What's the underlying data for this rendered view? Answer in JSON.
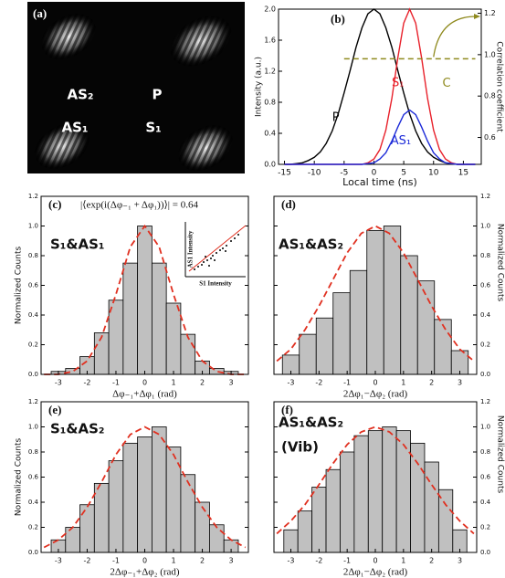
{
  "chart_data": [
    {
      "type": "image",
      "panel_label": "(a)",
      "labels": [
        "AS₂",
        "P",
        "AS₁",
        "S₁"
      ]
    },
    {
      "type": "line",
      "panel_label": "(b)",
      "xlabel": "Local time (ns)",
      "ylabel": "Intensity (a.u.)",
      "y2label": "Correlation coefficient",
      "x": [
        -15,
        -14,
        -13,
        -12,
        -11,
        -10,
        -9,
        -8,
        -7,
        -6,
        -5,
        -4,
        -3,
        -2,
        -1,
        0,
        1,
        2,
        3,
        4,
        5,
        6,
        7,
        8,
        9,
        10,
        11,
        12,
        13,
        14,
        15,
        16,
        17
      ],
      "series": [
        {
          "name": "P",
          "color": "#000000",
          "values": [
            0.0,
            0.0,
            0.01,
            0.02,
            0.05,
            0.09,
            0.16,
            0.27,
            0.43,
            0.65,
            0.92,
            1.21,
            1.51,
            1.76,
            1.94,
            2.0,
            1.94,
            1.76,
            1.51,
            1.21,
            0.92,
            0.65,
            0.43,
            0.27,
            0.16,
            0.09,
            0.05,
            0.02,
            0.01,
            0.0,
            0.0,
            0.0,
            0.0
          ]
        },
        {
          "name": "S₁",
          "color": "#e8202a",
          "values": [
            0,
            0,
            0,
            0,
            0,
            0,
            0,
            0,
            0,
            0,
            0,
            0,
            0,
            0,
            0.02,
            0.07,
            0.19,
            0.44,
            0.85,
            1.37,
            1.82,
            2.0,
            1.82,
            1.37,
            0.85,
            0.44,
            0.19,
            0.07,
            0.02,
            0,
            0,
            0,
            0
          ]
        },
        {
          "name": "AS₁",
          "color": "#1c2ad8",
          "values": [
            0,
            0,
            0,
            0,
            0,
            0,
            0,
            0,
            0,
            0,
            0,
            0,
            0,
            0,
            0.01,
            0.02,
            0.07,
            0.15,
            0.3,
            0.48,
            0.64,
            0.7,
            0.64,
            0.48,
            0.3,
            0.15,
            0.07,
            0.02,
            0.01,
            0,
            0,
            0,
            0
          ]
        },
        {
          "name": "C",
          "color": "#8f8a1e",
          "axis": "y2",
          "line_style": "dashed",
          "values": [
            null,
            null,
            null,
            null,
            null,
            null,
            null,
            null,
            null,
            null,
            0.98,
            0.98,
            0.98,
            0.98,
            0.98,
            0.98,
            0.98,
            0.98,
            0.98,
            0.98,
            0.98,
            0.98,
            0.98,
            0.98,
            0.98,
            0.98,
            0.98,
            0.98,
            0.98,
            0.98,
            0.98,
            0.98,
            0.98
          ]
        }
      ],
      "xlim": [
        -16,
        18
      ],
      "xticks": [
        -15,
        -10,
        -5,
        0,
        5,
        10,
        15
      ],
      "ylim": [
        0,
        2
      ],
      "yticks": [
        {
          "value": 0,
          "label": "0.0"
        },
        0.4,
        0.8,
        1.2,
        1.6,
        {
          "value": 2,
          "label": "2.0"
        }
      ],
      "y2lim": [
        0.47,
        1.22
      ],
      "y2ticks": [
        0.6,
        0.8,
        {
          "value": 1,
          "label": "1.0"
        },
        1.2
      ]
    },
    {
      "type": "histogram",
      "panel_label": "(c)",
      "annotation": [
        "S₁&AS₁"
      ],
      "formula": "|⟨exp(i(Δφ₋₁ + Δφ₁))⟩| = 0.64",
      "inset": {
        "xlabel": "S1 Intensity",
        "ylabel": "AS1 Intensity"
      },
      "xlabel": "Δφ₋₁+Δφ₁ (rad)",
      "ylabel": "Normalized Counts",
      "color": "#c0c0c0",
      "bins": [
        -3.25,
        -2.75,
        -2.25,
        -1.75,
        -1.25,
        -0.75,
        -0.25,
        0.25,
        0.75,
        1.25,
        1.75,
        2.25,
        2.75,
        3.25
      ],
      "values": [
        0.02,
        0.04,
        0.12,
        0.28,
        0.5,
        0.75,
        1.0,
        0.75,
        0.48,
        0.27,
        0.09,
        0.04,
        0.02
      ],
      "fit": {
        "color": "#e03020",
        "x": [
          -3.5,
          -3,
          -2.5,
          -2,
          -1.5,
          -1,
          -0.5,
          0,
          0.5,
          1,
          1.5,
          2,
          2.5,
          3,
          3.5
        ],
        "values": [
          0.0,
          0.0,
          0.02,
          0.09,
          0.25,
          0.54,
          0.86,
          1.0,
          0.86,
          0.54,
          0.25,
          0.09,
          0.02,
          0.0,
          0.0
        ]
      },
      "xlim": [
        -3.6,
        3.6
      ],
      "xticks": [
        -3,
        -2,
        -1,
        0,
        1,
        2,
        3
      ],
      "ylim": [
        0,
        1.2
      ],
      "yticks": [
        {
          "value": 0,
          "label": "0.0"
        },
        0.2,
        0.4,
        0.6,
        0.8,
        {
          "value": 1,
          "label": "1.0"
        },
        1.2
      ]
    },
    {
      "type": "histogram",
      "panel_label": "(d)",
      "annotation": [
        "AS₁&AS₂"
      ],
      "xlabel": "2Δφ₁−Δφ₂ (rad)",
      "y2label": "Normalized Counts",
      "color": "#c0c0c0",
      "bins": [
        -3.3,
        -2.7,
        -2.1,
        -1.5,
        -0.9,
        -0.3,
        0.3,
        0.9,
        1.5,
        2.1,
        2.7,
        3.3
      ],
      "values": [
        0.13,
        0.27,
        0.38,
        0.55,
        0.7,
        0.97,
        1.0,
        0.8,
        0.63,
        0.37,
        0.16
      ],
      "fit": {
        "color": "#e03020",
        "x": [
          -3.5,
          -3,
          -2.5,
          -2,
          -1.5,
          -1,
          -0.5,
          0,
          0.5,
          1,
          1.5,
          2,
          2.5,
          3,
          3.5
        ],
        "values": [
          0.09,
          0.17,
          0.3,
          0.46,
          0.64,
          0.82,
          0.95,
          1.0,
          0.95,
          0.82,
          0.64,
          0.46,
          0.3,
          0.17,
          0.09
        ]
      },
      "xlim": [
        -3.6,
        3.6
      ],
      "xticks": [
        -3,
        -2,
        -1,
        0,
        1,
        2,
        3
      ],
      "ylim": [
        0,
        1.2
      ],
      "yticks": [
        {
          "value": 0,
          "label": "0.0"
        },
        0.2,
        0.4,
        0.6,
        0.8,
        {
          "value": 1,
          "label": "1.0"
        },
        1.2
      ]
    },
    {
      "type": "histogram",
      "panel_label": "(e)",
      "annotation": [
        "S₁&AS₂"
      ],
      "xlabel": "2Δφ₋₁+Δφ₂ (rad)",
      "ylabel": "Normalized Counts",
      "color": "#c0c0c0",
      "bins": [
        -3.25,
        -2.75,
        -2.25,
        -1.75,
        -1.25,
        -0.75,
        -0.25,
        0.25,
        0.75,
        1.25,
        1.75,
        2.25,
        2.75,
        3.25
      ],
      "values": [
        0.1,
        0.2,
        0.38,
        0.55,
        0.73,
        0.87,
        0.92,
        1.0,
        0.84,
        0.62,
        0.4,
        0.22,
        0.1
      ],
      "fit": {
        "color": "#e03020",
        "x": [
          -3.5,
          -3,
          -2.5,
          -2,
          -1.5,
          -1,
          -0.5,
          0,
          0.5,
          1,
          1.5,
          2,
          2.5,
          3,
          3.5
        ],
        "values": [
          0.04,
          0.1,
          0.2,
          0.36,
          0.56,
          0.78,
          0.94,
          1.0,
          0.94,
          0.78,
          0.56,
          0.36,
          0.2,
          0.1,
          0.04
        ]
      },
      "xlim": [
        -3.6,
        3.6
      ],
      "xticks": [
        -3,
        -2,
        -1,
        0,
        1,
        2,
        3
      ],
      "ylim": [
        0,
        1.2
      ],
      "yticks": [
        {
          "value": 0,
          "label": "0.0"
        },
        0.2,
        0.4,
        0.6,
        0.8,
        {
          "value": 1,
          "label": "1.0"
        },
        1.2
      ]
    },
    {
      "type": "histogram",
      "panel_label": "(f)",
      "annotation": [
        "AS₁&AS₂",
        "(Vib)"
      ],
      "xlabel": "2Δφ₁−Δφ₂ (rad)",
      "y2label": "Normalized Counts",
      "color": "#c0c0c0",
      "bins": [
        -3.25,
        -2.75,
        -2.25,
        -1.75,
        -1.25,
        -0.75,
        -0.25,
        0.25,
        0.75,
        1.25,
        1.75,
        2.25,
        2.75,
        3.25
      ],
      "values": [
        0.18,
        0.33,
        0.52,
        0.66,
        0.8,
        0.93,
        0.97,
        1.0,
        0.97,
        0.87,
        0.72,
        0.5,
        0.18
      ],
      "fit": {
        "color": "#e03020",
        "x": [
          -3.5,
          -3,
          -2.5,
          -2,
          -1.5,
          -1,
          -0.5,
          0,
          0.5,
          1,
          1.5,
          2,
          2.5,
          3,
          3.5
        ],
        "values": [
          0.15,
          0.25,
          0.38,
          0.54,
          0.71,
          0.86,
          0.96,
          1.0,
          0.96,
          0.86,
          0.71,
          0.54,
          0.38,
          0.25,
          0.15
        ]
      },
      "xlim": [
        -3.6,
        3.6
      ],
      "xticks": [
        -3,
        -2,
        -1,
        0,
        1,
        2,
        3
      ],
      "ylim": [
        0,
        1.2
      ],
      "yticks": [
        {
          "value": 0,
          "label": "0.0"
        },
        0.2,
        0.4,
        0.6,
        0.8,
        {
          "value": 1,
          "label": "1.0"
        },
        1.2
      ]
    }
  ]
}
